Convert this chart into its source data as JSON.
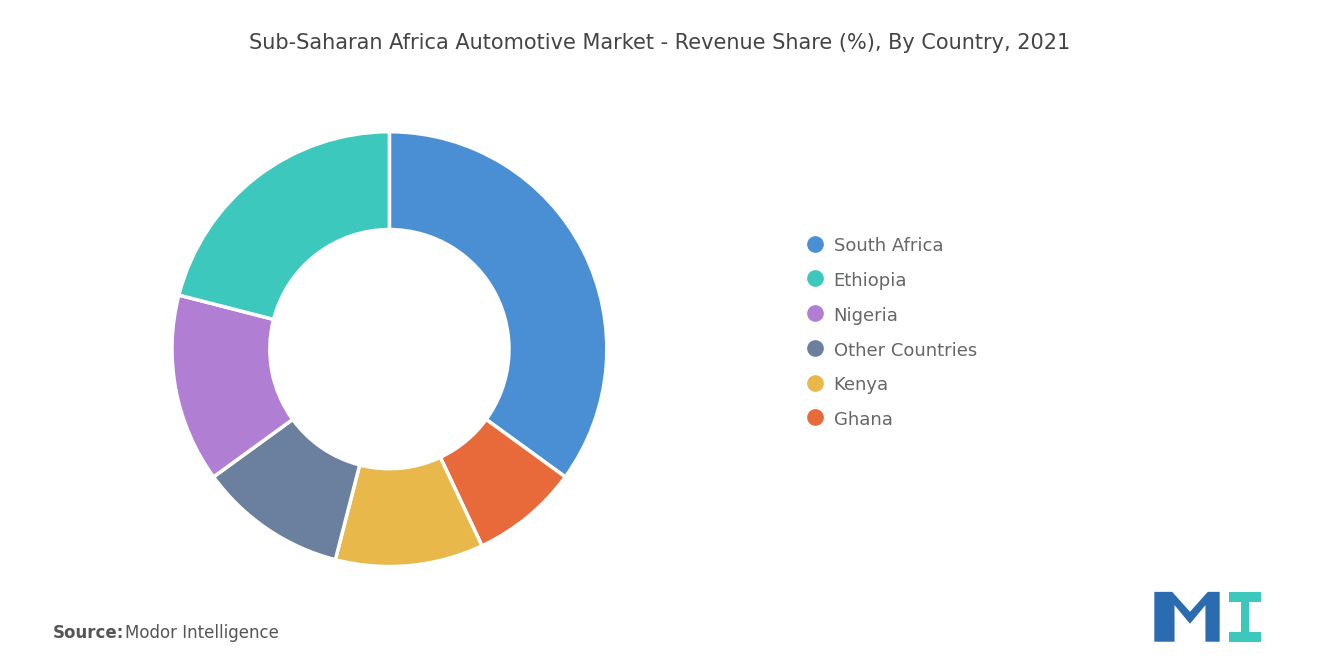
{
  "title": "Sub-Saharan Africa Automotive Market - Revenue Share (%), By Country, 2021",
  "title_fontsize": 15,
  "labels": [
    "South Africa",
    "Ghana",
    "Kenya",
    "Other Countries",
    "Nigeria",
    "Ethiopia"
  ],
  "values": [
    35,
    8,
    11,
    11,
    14,
    21
  ],
  "colors": [
    "#4A8FD4",
    "#E8693A",
    "#E8B84B",
    "#6B7F9E",
    "#B07FD4",
    "#3DC8BE"
  ],
  "legend_labels": [
    "South Africa",
    "Ethiopia",
    "Nigeria",
    "Other Countries",
    "Kenya",
    "Ghana"
  ],
  "legend_colors": [
    "#4A8FD4",
    "#3DC8BE",
    "#B07FD4",
    "#6B7F9E",
    "#E8B84B",
    "#E8693A"
  ],
  "source_bold": "Source:",
  "source_normal": "  Modor Intelligence",
  "background_color": "#ffffff"
}
